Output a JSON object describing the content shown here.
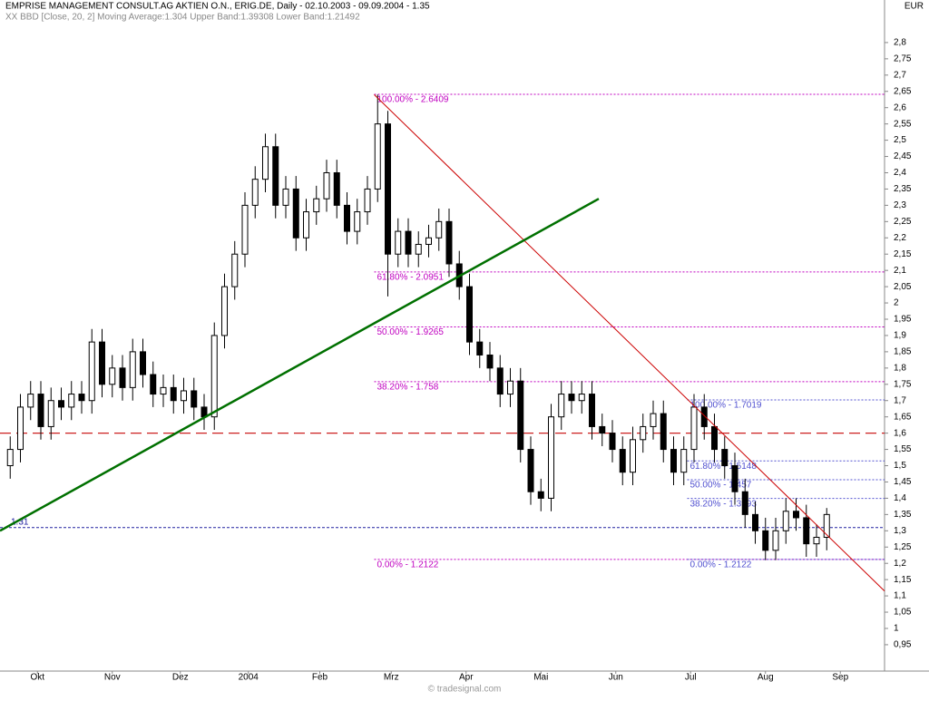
{
  "chart_data": {
    "type": "ohlc",
    "title": "EMPRISE MANAGEMENT CONSULT.AG AKTIEN O.N., ERIG.DE, Daily - 02.10.2003 - 09.09.2004 - 1.35",
    "subtitle": "XX BBD [Close, 20, 2] Moving Average:1.304 Upper Band:1.39308 Lower Band:1.21492",
    "currency": "EUR",
    "credit": "© tradesignal.com",
    "color": "#000000",
    "xlim": [
      0,
      260
    ],
    "ylim": [
      0.869,
      2.875
    ],
    "xticks": [
      {
        "value": 11,
        "label": "Okt"
      },
      {
        "value": 33,
        "label": "Nov"
      },
      {
        "value": 53,
        "label": "Dez"
      },
      {
        "value": 73,
        "label": "2004"
      },
      {
        "value": 94,
        "label": "Feb"
      },
      {
        "value": 115,
        "label": "Mrz"
      },
      {
        "value": 137,
        "label": "Apr"
      },
      {
        "value": 159,
        "label": "Mai"
      },
      {
        "value": 181,
        "label": "Jun"
      },
      {
        "value": 203,
        "label": "Jul"
      },
      {
        "value": 225,
        "label": "Aug"
      },
      {
        "value": 247,
        "label": "Sep"
      }
    ],
    "yticks": [
      {
        "value": 2.8,
        "label": "2,8"
      },
      {
        "value": 2.75,
        "label": "2,75"
      },
      {
        "value": 2.7,
        "label": "2,7"
      },
      {
        "value": 2.65,
        "label": "2,65"
      },
      {
        "value": 2.6,
        "label": "2,6"
      },
      {
        "value": 2.55,
        "label": "2,55"
      },
      {
        "value": 2.5,
        "label": "2,5"
      },
      {
        "value": 2.45,
        "label": "2,45"
      },
      {
        "value": 2.4,
        "label": "2,4"
      },
      {
        "value": 2.35,
        "label": "2,35"
      },
      {
        "value": 2.3,
        "label": "2,3"
      },
      {
        "value": 2.25,
        "label": "2,25"
      },
      {
        "value": 2.2,
        "label": "2,2"
      },
      {
        "value": 2.15,
        "label": "2,15"
      },
      {
        "value": 2.1,
        "label": "2,1"
      },
      {
        "value": 2.05,
        "label": "2,05"
      },
      {
        "value": 2,
        "label": "2"
      },
      {
        "value": 1.95,
        "label": "1,95"
      },
      {
        "value": 1.9,
        "label": "1,9"
      },
      {
        "value": 1.85,
        "label": "1,85"
      },
      {
        "value": 1.8,
        "label": "1,8"
      },
      {
        "value": 1.75,
        "label": "1,75"
      },
      {
        "value": 1.7,
        "label": "1,7"
      },
      {
        "value": 1.65,
        "label": "1,65"
      },
      {
        "value": 1.6,
        "label": "1,6"
      },
      {
        "value": 1.55,
        "label": "1,55"
      },
      {
        "value": 1.5,
        "label": "1,5"
      },
      {
        "value": 1.45,
        "label": "1,45"
      },
      {
        "value": 1.4,
        "label": "1,4"
      },
      {
        "value": 1.35,
        "label": "1,35"
      },
      {
        "value": 1.3,
        "label": "1,3"
      },
      {
        "value": 1.25,
        "label": "1,25"
      },
      {
        "value": 1.2,
        "label": "1,2"
      },
      {
        "value": 1.15,
        "label": "1,15"
      },
      {
        "value": 1.1,
        "label": "1,1"
      },
      {
        "value": 1.05,
        "label": "1,05"
      },
      {
        "value": 1,
        "label": "1"
      },
      {
        "value": 0.95,
        "label": "0,95"
      }
    ],
    "x": [
      3,
      6,
      9,
      12,
      15,
      18,
      21,
      24,
      27,
      30,
      33,
      36,
      39,
      42,
      45,
      48,
      51,
      54,
      57,
      60,
      63,
      66,
      69,
      72,
      75,
      78,
      81,
      84,
      87,
      90,
      93,
      96,
      99,
      102,
      105,
      108,
      111,
      114,
      117,
      120,
      123,
      126,
      129,
      132,
      135,
      138,
      141,
      144,
      147,
      150,
      153,
      156,
      159,
      162,
      165,
      168,
      171,
      174,
      177,
      180,
      183,
      186,
      189,
      192,
      195,
      198,
      201,
      204,
      207,
      210,
      213,
      216,
      219,
      222,
      225,
      228,
      231,
      234,
      237,
      240,
      243
    ],
    "open": [
      1.5,
      1.55,
      1.68,
      1.72,
      1.62,
      1.7,
      1.68,
      1.72,
      1.7,
      1.88,
      1.75,
      1.8,
      1.74,
      1.85,
      1.78,
      1.72,
      1.74,
      1.7,
      1.73,
      1.68,
      1.65,
      1.9,
      2.05,
      2.15,
      2.3,
      2.38,
      2.48,
      2.3,
      2.35,
      2.2,
      2.28,
      2.32,
      2.4,
      2.3,
      2.22,
      2.28,
      2.35,
      2.55,
      2.15,
      2.22,
      2.15,
      2.18,
      2.2,
      2.25,
      2.12,
      2.05,
      1.88,
      1.84,
      1.8,
      1.72,
      1.76,
      1.55,
      1.42,
      1.4,
      1.65,
      1.72,
      1.7,
      1.72,
      1.62,
      1.6,
      1.55,
      1.48,
      1.58,
      1.62,
      1.66,
      1.55,
      1.48,
      1.55,
      1.68,
      1.62,
      1.55,
      1.5,
      1.42,
      1.35,
      1.3,
      1.24,
      1.3,
      1.36,
      1.34,
      1.26,
      1.28
    ],
    "high": [
      1.59,
      1.72,
      1.76,
      1.76,
      1.74,
      1.74,
      1.76,
      1.76,
      1.92,
      1.92,
      1.84,
      1.84,
      1.89,
      1.89,
      1.82,
      1.78,
      1.78,
      1.77,
      1.77,
      1.72,
      1.94,
      2.09,
      2.19,
      2.34,
      2.42,
      2.52,
      2.52,
      2.39,
      2.39,
      2.32,
      2.36,
      2.44,
      2.44,
      2.34,
      2.32,
      2.39,
      2.64,
      2.59,
      2.26,
      2.26,
      2.22,
      2.24,
      2.29,
      2.29,
      2.16,
      2.09,
      1.92,
      1.88,
      1.84,
      1.8,
      1.8,
      1.59,
      1.46,
      1.69,
      1.76,
      1.76,
      1.76,
      1.76,
      1.66,
      1.64,
      1.59,
      1.62,
      1.66,
      1.7,
      1.7,
      1.59,
      1.59,
      1.72,
      1.72,
      1.66,
      1.59,
      1.54,
      1.46,
      1.39,
      1.34,
      1.34,
      1.4,
      1.4,
      1.38,
      1.32,
      1.37
    ],
    "low": [
      1.46,
      1.51,
      1.64,
      1.58,
      1.58,
      1.64,
      1.64,
      1.66,
      1.66,
      1.71,
      1.71,
      1.7,
      1.7,
      1.74,
      1.68,
      1.68,
      1.66,
      1.66,
      1.64,
      1.61,
      1.61,
      1.86,
      2.01,
      2.11,
      2.26,
      2.34,
      2.26,
      2.26,
      2.16,
      2.16,
      2.24,
      2.28,
      2.26,
      2.18,
      2.18,
      2.24,
      2.31,
      2.02,
      2.11,
      2.11,
      2.11,
      2.14,
      2.16,
      2.08,
      2.01,
      1.84,
      1.8,
      1.76,
      1.68,
      1.68,
      1.51,
      1.38,
      1.36,
      1.36,
      1.61,
      1.66,
      1.66,
      1.58,
      1.56,
      1.51,
      1.44,
      1.44,
      1.54,
      1.58,
      1.51,
      1.44,
      1.44,
      1.51,
      1.58,
      1.51,
      1.46,
      1.38,
      1.31,
      1.26,
      1.21,
      1.21,
      1.26,
      1.3,
      1.22,
      1.22,
      1.24
    ],
    "close": [
      1.55,
      1.68,
      1.72,
      1.62,
      1.7,
      1.68,
      1.72,
      1.7,
      1.88,
      1.75,
      1.8,
      1.74,
      1.85,
      1.78,
      1.72,
      1.74,
      1.7,
      1.73,
      1.68,
      1.65,
      1.9,
      2.05,
      2.15,
      2.3,
      2.38,
      2.48,
      2.3,
      2.35,
      2.2,
      2.28,
      2.32,
      2.4,
      2.3,
      2.22,
      2.28,
      2.35,
      2.55,
      2.15,
      2.22,
      2.15,
      2.18,
      2.2,
      2.25,
      2.12,
      2.05,
      1.88,
      1.84,
      1.8,
      1.72,
      1.76,
      1.55,
      1.42,
      1.4,
      1.65,
      1.72,
      1.7,
      1.72,
      1.62,
      1.6,
      1.55,
      1.48,
      1.58,
      1.62,
      1.66,
      1.55,
      1.48,
      1.55,
      1.68,
      1.62,
      1.55,
      1.5,
      1.42,
      1.35,
      1.3,
      1.24,
      1.3,
      1.36,
      1.34,
      1.26,
      1.28,
      1.35
    ],
    "levels": [
      {
        "value": 2.6409,
        "label": "100.00% - 2.6409",
        "start": 110,
        "color": "#c000c0"
      },
      {
        "value": 2.0951,
        "label": "61.80% - 2.0951",
        "start": 110,
        "color": "#c000c0"
      },
      {
        "value": 1.9265,
        "label": "50.00% - 1.9265",
        "start": 110,
        "color": "#c000c0"
      },
      {
        "value": 1.758,
        "label": "38.20% - 1.758",
        "start": 110,
        "color": "#c000c0"
      },
      {
        "value": 1.2122,
        "label": "0.00% - 1.2122",
        "start": 110,
        "color": "#c000c0"
      },
      {
        "value": 1.7019,
        "label": "100.00% - 1.7019",
        "start": 202,
        "color": "#5050d0"
      },
      {
        "value": 1.5148,
        "label": "61.80% - 1.5148",
        "start": 202,
        "color": "#5050d0"
      },
      {
        "value": 1.457,
        "label": "50.00% - 1.457",
        "start": 202,
        "color": "#5050d0"
      },
      {
        "value": 1.3993,
        "label": "38.20% - 1.3993",
        "start": 202,
        "color": "#5050d0"
      },
      {
        "value": 1.2122,
        "label": "0.00% - 1.2122",
        "start": 202,
        "color": "#5050d0"
      },
      {
        "value": 1.31,
        "label": "1.31",
        "start": 0,
        "color": "#2020a0"
      }
    ],
    "trendlines": [
      {
        "x": [
          110,
          260
        ],
        "y": [
          2.64,
          1.115
        ],
        "color": "#cc0000"
      },
      {
        "x": [
          0,
          176
        ],
        "y": [
          1.3,
          2.32
        ],
        "color": "#007000"
      }
    ],
    "support": {
      "value": 1.6,
      "color": "#cc2020"
    }
  }
}
